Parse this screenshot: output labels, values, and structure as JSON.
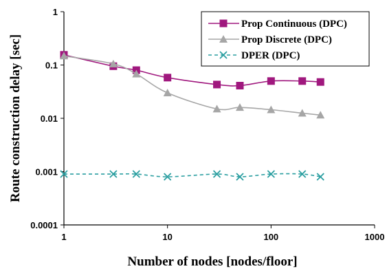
{
  "chart_data": {
    "type": "line",
    "xscale": "log",
    "yscale": "log",
    "xlim": [
      1,
      1000
    ],
    "ylim": [
      0.0001,
      1
    ],
    "xlabel": "Number of nodes [nodes/floor]",
    "ylabel": "Route construction delay [sec]",
    "xticks": [
      "1",
      "10",
      "100",
      "1000"
    ],
    "yticks": [
      "0.0001",
      "0.001",
      "0.01",
      "0.1",
      "1"
    ],
    "grid": false,
    "legend": "top-right",
    "series": [
      {
        "name": "Prop Continuous (DPC)",
        "color": "#a0187e",
        "marker": "square",
        "line": "solid",
        "x": [
          1,
          3,
          5,
          10,
          30,
          50,
          100,
          200,
          300
        ],
        "y": [
          0.155,
          0.095,
          0.08,
          0.058,
          0.043,
          0.041,
          0.05,
          0.05,
          0.048
        ]
      },
      {
        "name": "Prop Discrete (DPC)",
        "color": "#a6a6a6",
        "marker": "triangle",
        "line": "solid",
        "x": [
          1,
          3,
          5,
          10,
          30,
          50,
          100,
          200,
          300
        ],
        "y": [
          0.148,
          0.105,
          0.068,
          0.03,
          0.015,
          0.016,
          0.0145,
          0.0125,
          0.0115
        ]
      },
      {
        "name": "DPER (DPC)",
        "color": "#2a9ea0",
        "marker": "x",
        "line": "dashed",
        "x": [
          1,
          3,
          5,
          10,
          30,
          50,
          100,
          200,
          300
        ],
        "y": [
          0.0009,
          0.0009,
          0.0009,
          0.0008,
          0.0009,
          0.0008,
          0.0009,
          0.0009,
          0.0008
        ]
      }
    ]
  }
}
